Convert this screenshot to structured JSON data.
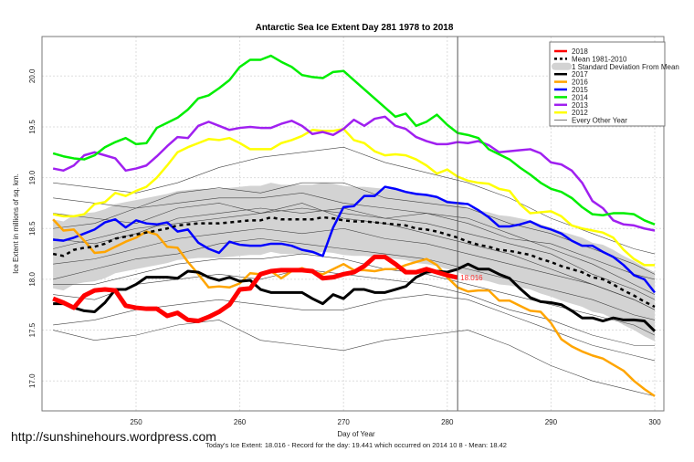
{
  "chart_data": {
    "type": "line",
    "title": "Antarctic Sea Ice Extent Day 281 1978 to 2018",
    "xlabel": "Day of Year",
    "ylabel": "Ice Extent in millions of sq. km.",
    "xlim": [
      241,
      301
    ],
    "ylim": [
      16.7,
      20.35
    ],
    "xticks": [
      250,
      260,
      270,
      280,
      290,
      300
    ],
    "yticks": [
      "17.0",
      "17.5",
      "18.0",
      "18.5",
      "19.0",
      "19.5",
      "20.0"
    ],
    "grid": true,
    "legend_position": "top-right",
    "marker_day": 281,
    "current_label": "18.016",
    "footer": "Today's Ice Extent: 18.016  - Record for the day: 19.441 which occurred on 2014 10 8  - Mean: 18.42",
    "days": [
      242,
      243,
      244,
      245,
      246,
      247,
      248,
      249,
      250,
      251,
      252,
      253,
      254,
      255,
      256,
      257,
      258,
      259,
      260,
      261,
      262,
      263,
      264,
      265,
      266,
      267,
      268,
      269,
      270,
      271,
      272,
      273,
      274,
      275,
      276,
      277,
      278,
      279,
      280,
      281,
      282,
      283,
      284,
      285,
      286,
      287,
      288,
      289,
      290,
      291,
      292,
      293,
      294,
      295,
      296,
      297,
      298,
      299,
      300
    ],
    "series": [
      {
        "name": "2018",
        "color": "#ff0000",
        "width": 5,
        "values": [
          17.81,
          17.77,
          17.72,
          17.84,
          17.89,
          17.9,
          17.89,
          17.74,
          17.72,
          17.71,
          17.71,
          17.64,
          17.67,
          17.6,
          17.59,
          17.63,
          17.68,
          17.75,
          17.9,
          17.91,
          18.05,
          18.08,
          18.09,
          18.09,
          18.09,
          18.08,
          18.01,
          18.02,
          18.05,
          18.07,
          18.13,
          18.22,
          18.22,
          18.15,
          18.07,
          18.07,
          18.1,
          18.07,
          18.04,
          18.016
        ]
      },
      {
        "name": "Mean 1981-2010",
        "color": "#000000",
        "dashed": true,
        "values": [
          18.25,
          18.23,
          18.29,
          18.31,
          18.32,
          18.35,
          18.4,
          18.42,
          18.44,
          18.46,
          18.48,
          18.5,
          18.53,
          18.54,
          18.55,
          18.55,
          18.55,
          18.56,
          18.57,
          18.58,
          18.58,
          18.61,
          18.59,
          18.59,
          18.59,
          18.59,
          18.61,
          18.6,
          18.58,
          18.57,
          18.57,
          18.56,
          18.55,
          18.54,
          18.53,
          18.5,
          18.49,
          18.47,
          18.44,
          18.41,
          18.37,
          18.34,
          18.32,
          18.29,
          18.28,
          18.26,
          18.24,
          18.2,
          18.17,
          18.13,
          18.1,
          18.07,
          18.02,
          18.0,
          17.95,
          17.89,
          17.84,
          17.78,
          17.73
        ]
      },
      {
        "name": "2017",
        "color": "#000000",
        "width": 3,
        "values": [
          17.76,
          17.76,
          17.72,
          17.69,
          17.68,
          17.77,
          17.9,
          17.9,
          17.95,
          18.02,
          18.02,
          18.02,
          18.01,
          18.08,
          18.07,
          18.02,
          17.99,
          18.02,
          17.98,
          17.99,
          17.9,
          17.87,
          17.87,
          17.87,
          17.87,
          17.81,
          17.76,
          17.85,
          17.81,
          17.9,
          17.9,
          17.87,
          17.87,
          17.9,
          17.93,
          18.02,
          18.07,
          18.08,
          18.07,
          18.1,
          18.15,
          18.1,
          18.1,
          18.05,
          18.01,
          17.91,
          17.82,
          17.78,
          17.77,
          17.75,
          17.69,
          17.62,
          17.62,
          17.59,
          17.62,
          17.6,
          17.6,
          17.59,
          17.49
        ]
      },
      {
        "name": "2016",
        "color": "#ffa500",
        "width": 2.5,
        "values": [
          18.59,
          18.48,
          18.49,
          18.38,
          18.26,
          18.27,
          18.32,
          18.37,
          18.41,
          18.47,
          18.44,
          18.32,
          18.31,
          18.17,
          18.05,
          17.92,
          17.93,
          17.92,
          17.96,
          18.06,
          18.05,
          18.08,
          18.01,
          18.08,
          18.11,
          18.07,
          18.05,
          18.1,
          18.15,
          18.09,
          18.09,
          18.08,
          18.1,
          18.1,
          18.14,
          18.17,
          18.2,
          18.14,
          18.02,
          17.92,
          17.88,
          17.89,
          17.89,
          17.79,
          17.79,
          17.74,
          17.69,
          17.68,
          17.57,
          17.41,
          17.34,
          17.29,
          17.25,
          17.22,
          17.16,
          17.1,
          17.0,
          16.92,
          16.85
        ]
      },
      {
        "name": "2015",
        "color": "#0000ff",
        "width": 2.5,
        "values": [
          18.39,
          18.38,
          18.41,
          18.45,
          18.49,
          18.56,
          18.59,
          18.51,
          18.58,
          18.55,
          18.54,
          18.56,
          18.47,
          18.49,
          18.36,
          18.3,
          18.26,
          18.37,
          18.34,
          18.33,
          18.33,
          18.35,
          18.35,
          18.33,
          18.29,
          18.27,
          18.23,
          18.51,
          18.71,
          18.72,
          18.82,
          18.82,
          18.91,
          18.89,
          18.86,
          18.84,
          18.83,
          18.81,
          18.76,
          18.75,
          18.74,
          18.68,
          18.61,
          18.52,
          18.52,
          18.54,
          18.57,
          18.52,
          18.49,
          18.45,
          18.38,
          18.33,
          18.33,
          18.27,
          18.22,
          18.14,
          18.04,
          18.0,
          17.87
        ]
      },
      {
        "name": "2014",
        "color": "#00ee00",
        "width": 2.5,
        "values": [
          19.24,
          19.21,
          19.19,
          19.18,
          19.22,
          19.3,
          19.35,
          19.39,
          19.33,
          19.34,
          19.49,
          19.54,
          19.59,
          19.67,
          19.78,
          19.81,
          19.88,
          19.96,
          20.09,
          20.16,
          20.16,
          20.2,
          20.14,
          20.09,
          20.01,
          19.99,
          19.98,
          20.04,
          20.05,
          19.96,
          19.87,
          19.78,
          19.69,
          19.6,
          19.63,
          19.51,
          19.55,
          19.62,
          19.52,
          19.44,
          19.42,
          19.39,
          19.28,
          19.23,
          19.18,
          19.1,
          19.03,
          18.95,
          18.89,
          18.86,
          18.8,
          18.71,
          18.64,
          18.63,
          18.65,
          18.65,
          18.64,
          18.58,
          18.54
        ]
      },
      {
        "name": "2013",
        "color": "#a020f0",
        "width": 2.5,
        "values": [
          19.09,
          19.07,
          19.12,
          19.22,
          19.25,
          19.22,
          19.19,
          19.07,
          19.09,
          19.12,
          19.21,
          19.31,
          19.4,
          19.39,
          19.51,
          19.55,
          19.51,
          19.47,
          19.49,
          19.5,
          19.49,
          19.49,
          19.53,
          19.56,
          19.51,
          19.43,
          19.45,
          19.42,
          19.48,
          19.57,
          19.51,
          19.58,
          19.6,
          19.51,
          19.48,
          19.4,
          19.36,
          19.33,
          19.33,
          19.35,
          19.34,
          19.36,
          19.32,
          19.25,
          19.26,
          19.27,
          19.28,
          19.24,
          19.15,
          19.13,
          19.07,
          18.95,
          18.77,
          18.7,
          18.58,
          18.54,
          18.53,
          18.5,
          18.48
        ]
      },
      {
        "name": "2012",
        "color": "#ffff00",
        "width": 2.5,
        "values": [
          18.64,
          18.62,
          18.62,
          18.64,
          18.74,
          18.76,
          18.85,
          18.82,
          18.87,
          18.91,
          19.0,
          19.12,
          19.25,
          19.3,
          19.34,
          19.38,
          19.37,
          19.39,
          19.34,
          19.28,
          19.28,
          19.28,
          19.34,
          19.37,
          19.41,
          19.47,
          19.46,
          19.46,
          19.48,
          19.37,
          19.34,
          19.26,
          19.22,
          19.23,
          19.22,
          19.18,
          19.12,
          19.04,
          19.08,
          19.01,
          18.97,
          18.95,
          18.94,
          18.89,
          18.87,
          18.74,
          18.65,
          18.66,
          18.67,
          18.62,
          18.53,
          18.5,
          18.48,
          18.46,
          18.41,
          18.29,
          18.2,
          18.14,
          18.14
        ]
      }
    ],
    "sd_band": {
      "name": "1 Standard Deviation From Mean",
      "color": "#d3d3d3",
      "sd": 0.34
    },
    "every_other_year": {
      "name": "Every Other Year",
      "color": "#555555",
      "days": [
        242,
        246,
        250,
        254,
        258,
        262,
        266,
        270,
        274,
        278,
        282,
        286,
        290,
        294,
        298,
        300
      ],
      "lines": [
        [
          18.95,
          18.9,
          18.85,
          18.95,
          19.1,
          19.2,
          19.25,
          19.3,
          19.15,
          19.05,
          18.95,
          18.8,
          18.6,
          18.45,
          18.3,
          18.25
        ],
        [
          18.8,
          18.75,
          18.7,
          18.85,
          18.9,
          18.85,
          18.95,
          18.95,
          18.8,
          18.75,
          18.7,
          18.55,
          18.45,
          18.3,
          18.15,
          18.05
        ],
        [
          18.5,
          18.55,
          18.7,
          18.75,
          18.8,
          18.8,
          18.85,
          18.75,
          18.7,
          18.65,
          18.6,
          18.45,
          18.3,
          18.15,
          17.95,
          17.85
        ],
        [
          18.4,
          18.35,
          18.45,
          18.6,
          18.65,
          18.7,
          18.65,
          18.7,
          18.6,
          18.55,
          18.45,
          18.35,
          18.25,
          18.05,
          17.9,
          17.8
        ],
        [
          18.15,
          18.2,
          18.3,
          18.4,
          18.45,
          18.5,
          18.45,
          18.5,
          18.4,
          18.35,
          18.25,
          18.15,
          18.05,
          17.95,
          17.8,
          17.7
        ],
        [
          18.0,
          18.1,
          18.2,
          18.25,
          18.35,
          18.4,
          18.35,
          18.3,
          18.25,
          18.2,
          18.1,
          18.0,
          17.9,
          17.8,
          17.65,
          17.6
        ],
        [
          17.95,
          17.95,
          18.05,
          18.15,
          18.2,
          18.2,
          18.25,
          18.2,
          18.1,
          18.05,
          17.95,
          17.85,
          17.75,
          17.65,
          17.55,
          17.45
        ],
        [
          17.85,
          17.8,
          17.95,
          18.0,
          18.05,
          18.0,
          18.1,
          18.05,
          18.0,
          17.95,
          17.85,
          17.7,
          17.6,
          17.45,
          17.35,
          17.35
        ],
        [
          17.55,
          17.6,
          17.7,
          17.75,
          17.8,
          17.75,
          17.7,
          17.7,
          17.8,
          17.85,
          17.8,
          17.65,
          17.5,
          17.35,
          17.25,
          17.2
        ],
        [
          17.5,
          17.4,
          17.45,
          17.55,
          17.6,
          17.4,
          17.35,
          17.3,
          17.4,
          17.45,
          17.5,
          17.35,
          17.15,
          17.0,
          16.9,
          16.85
        ],
        [
          18.65,
          18.6,
          18.55,
          18.7,
          18.75,
          18.65,
          18.7,
          18.65,
          18.6,
          18.65,
          18.55,
          18.4,
          18.35,
          18.2,
          18.05,
          18.0
        ],
        [
          18.3,
          18.4,
          18.5,
          18.55,
          18.6,
          18.65,
          18.75,
          18.6,
          18.55,
          18.45,
          18.35,
          18.25,
          18.1,
          17.95,
          17.8,
          17.7
        ]
      ]
    },
    "legend": [
      {
        "label": "2018",
        "color": "#ff0000",
        "style": "line"
      },
      {
        "label": "Mean 1981-2010",
        "color": "#000000",
        "style": "dash"
      },
      {
        "label": "1 Standard Deviation From Mean",
        "color": "#d3d3d3",
        "style": "band"
      },
      {
        "label": "2017",
        "color": "#000000",
        "style": "line"
      },
      {
        "label": "2016",
        "color": "#ffa500",
        "style": "line"
      },
      {
        "label": "2015",
        "color": "#0000ff",
        "style": "line"
      },
      {
        "label": "2014",
        "color": "#00ee00",
        "style": "line"
      },
      {
        "label": "2013",
        "color": "#a020f0",
        "style": "line"
      },
      {
        "label": "2012",
        "color": "#ffff00",
        "style": "line"
      },
      {
        "label": "Every Other Year",
        "color": "#555555",
        "style": "thin"
      }
    ]
  },
  "watermark": "http://sunshinehours.wordpress.com"
}
